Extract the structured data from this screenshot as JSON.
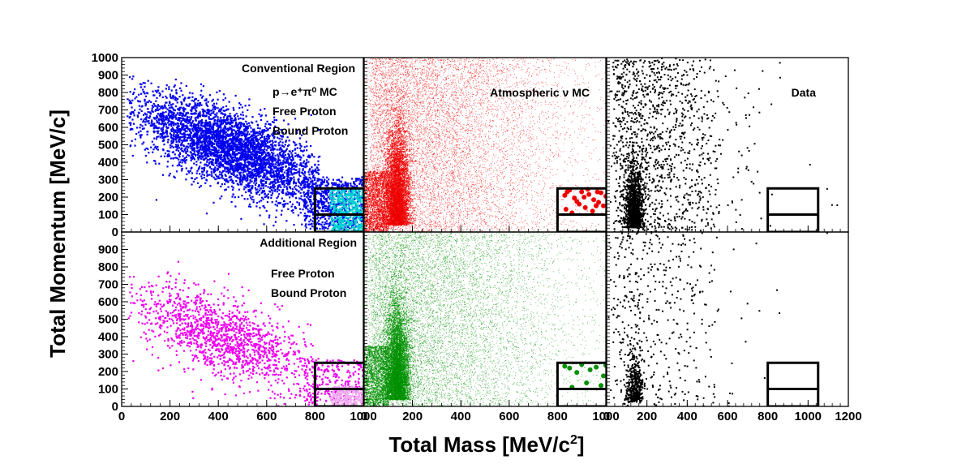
{
  "chart_data": {
    "type": "scatter",
    "xlabel": "Total Mass [MeV/c",
    "xlabel_sup": "2",
    "xlabel_end": "]",
    "ylabel": "Total Momentum [MeV/c]",
    "xlim": [
      0,
      1000
    ],
    "xlim_last_column": [
      0,
      1200
    ],
    "ylim_top_row": [
      0,
      1000
    ],
    "ylim_bottom_row": [
      0,
      1000
    ],
    "x_ticks_labels": [
      "0",
      "200",
      "400",
      "600",
      "800",
      "1000"
    ],
    "x_ticks_labels_last_column": [
      "0",
      "200",
      "400",
      "600",
      "800",
      "1000",
      "1200"
    ],
    "y_ticks_labels_top": [
      "0",
      "100",
      "200",
      "300",
      "400",
      "500",
      "600",
      "700",
      "800",
      "900",
      "1000"
    ],
    "y_ticks_labels_bottom": [
      "0",
      "100",
      "200",
      "300",
      "400",
      "500",
      "600",
      "700",
      "800",
      "900"
    ],
    "signal_box": {
      "mass_range": [
        800,
        1050
      ],
      "momentum_range": [
        0,
        250
      ],
      "momentum_split": 100
    },
    "rows": [
      {
        "region_label": "Conventional Region",
        "panels": [
          {
            "kind": "signal_mc",
            "label_process": "p→e⁺π⁰ MC",
            "legend": [
              {
                "name": "Free Proton",
                "color": "#00d0d0"
              },
              {
                "name": "Bound Proton",
                "color": "#0000ee"
              }
            ],
            "bound_cluster": {
              "mass_center": 450,
              "momentum_center": 480,
              "slope": -0.55,
              "count": 4200
            },
            "free_cluster": {
              "mass_range": [
                860,
                1000
              ],
              "momentum_range": [
                0,
                250
              ],
              "count": 500
            },
            "grid": false
          },
          {
            "kind": "atm_mc",
            "label": "Atmospheric ν MC",
            "color": "#ee0000",
            "background_density": "high",
            "peak_mass": 135,
            "in_box_points": [
              [
                830,
                210
              ],
              [
                850,
                240
              ],
              [
                870,
                195
              ],
              [
                880,
                175
              ],
              [
                900,
                230
              ],
              [
                910,
                200
              ],
              [
                930,
                215
              ],
              [
                950,
                185
              ],
              [
                960,
                150
              ],
              [
                980,
                225
              ],
              [
                1000,
                205
              ],
              [
                1020,
                240
              ],
              [
                835,
                130
              ],
              [
                860,
                110
              ],
              [
                890,
                160
              ],
              [
                915,
                140
              ],
              [
                945,
                120
              ],
              [
                970,
                170
              ],
              [
                990,
                150
              ],
              [
                1010,
                180
              ],
              [
                840,
                230
              ],
              [
                925,
                245
              ],
              [
                965,
                230
              ]
            ]
          },
          {
            "kind": "data",
            "label": "Data",
            "color": "#000000",
            "peak_mass": 135
          }
        ]
      },
      {
        "region_label": "Additional Region",
        "panels": [
          {
            "kind": "signal_mc",
            "legend": [
              {
                "name": "Free Proton",
                "color": "#f0a8f0"
              },
              {
                "name": "Bound Proton",
                "color": "#ee00ee"
              }
            ],
            "bound_cluster": {
              "mass_center": 420,
              "momentum_center": 400,
              "slope": -0.5,
              "count": 1500
            },
            "free_cluster": {
              "mass_range": [
                860,
                1000
              ],
              "momentum_range": [
                0,
                120
              ],
              "count": 300
            }
          },
          {
            "kind": "atm_mc",
            "color": "#009000",
            "background_density": "high",
            "peak_mass": 135,
            "in_box_points": [
              [
                830,
                230
              ],
              [
                850,
                220
              ],
              [
                880,
                195
              ],
              [
                900,
                240
              ],
              [
                935,
                210
              ],
              [
                960,
                225
              ],
              [
                990,
                175
              ],
              [
                1000,
                235
              ],
              [
                860,
                110
              ],
              [
                920,
                135
              ],
              [
                980,
                120
              ]
            ]
          },
          {
            "kind": "data",
            "color": "#000000",
            "peak_mass": 135
          }
        ]
      }
    ]
  }
}
